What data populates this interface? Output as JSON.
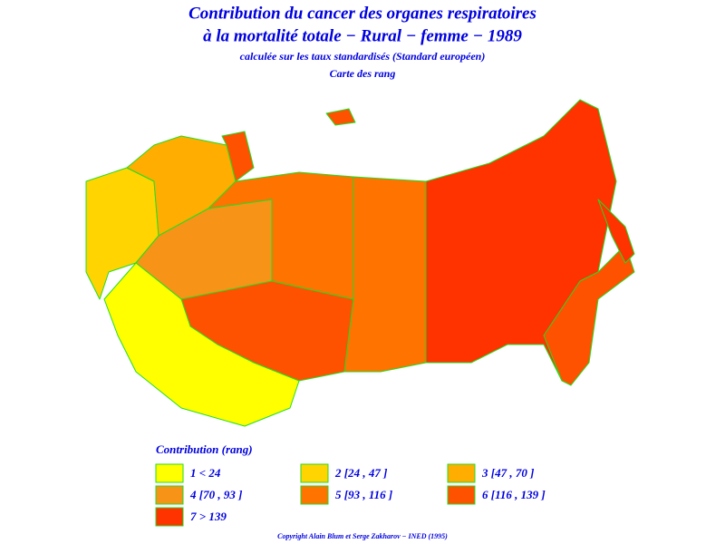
{
  "header": {
    "title_lines": [
      "Contribution du cancer des organes respiratoires",
      "à la mortalité totale − Rural − femme − 1989"
    ],
    "subtitle": "calculée sur les taux standardisés (Standard européen)",
    "caption": "Carte des rang"
  },
  "legend": {
    "title": "Contribution (rang)",
    "items": [
      {
        "label": "1  <  24",
        "color": "#ffff00"
      },
      {
        "label": "2 [24 , 47 ]",
        "color": "#ffd400"
      },
      {
        "label": "3 [47 , 70 ]",
        "color": "#ffad00"
      },
      {
        "label": "4 [70 , 93 ]",
        "color": "#f79418"
      },
      {
        "label": "5 [93 , 116 ]",
        "color": "#ff7300"
      },
      {
        "label": "6 [116 , 139 ]",
        "color": "#ff5200"
      },
      {
        "label": "7  >  139",
        "color": "#ff3300"
      }
    ]
  },
  "footer": "Copyright Alain Blum et Serge Zakharov − INED (1995)"
}
